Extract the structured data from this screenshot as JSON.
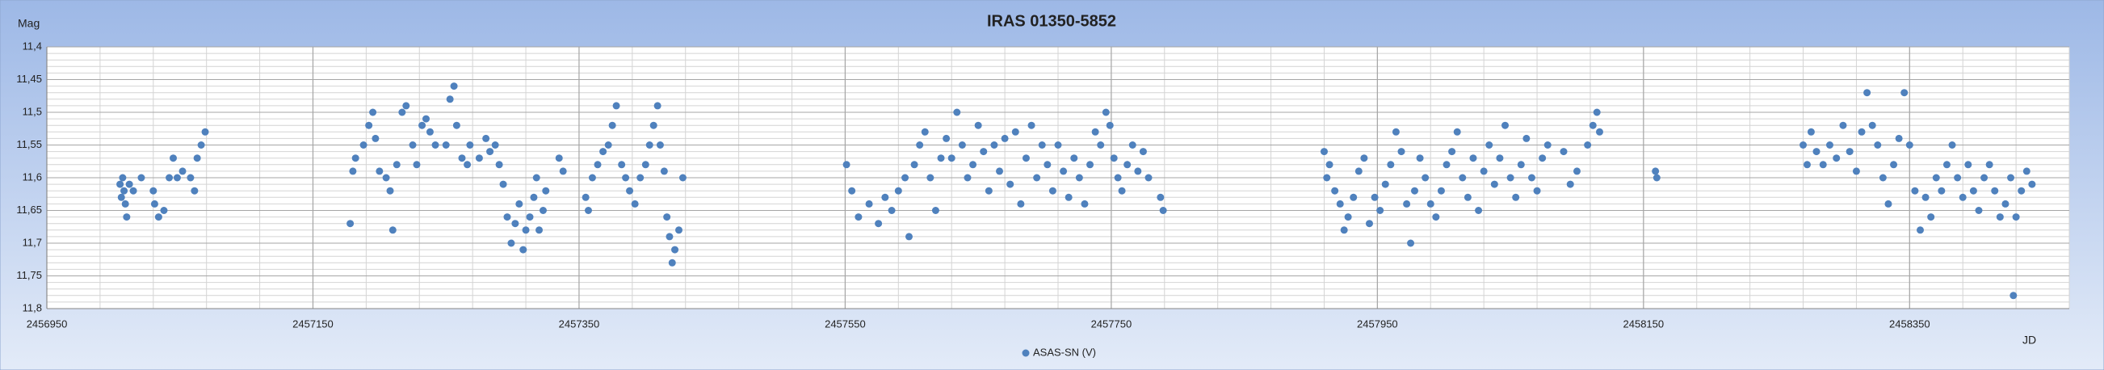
{
  "chart_data": {
    "type": "scatter",
    "title": "IRAS 01350-5852",
    "ylabel": "Mag",
    "xlabel": "JD",
    "xlim": [
      2456950,
      2458470
    ],
    "xticks": [
      2456950,
      2457150,
      2457350,
      2457550,
      2457750,
      2457950,
      2458150,
      2458350
    ],
    "ylim": [
      11.4,
      11.8
    ],
    "y_inverted": true,
    "yticks": [
      {
        "value": 11.4,
        "label": "11,4"
      },
      {
        "value": 11.45,
        "label": "11,45"
      },
      {
        "value": 11.5,
        "label": "11,5"
      },
      {
        "value": 11.55,
        "label": "11,55"
      },
      {
        "value": 11.6,
        "label": "11,6"
      },
      {
        "value": 11.65,
        "label": "11,65"
      },
      {
        "value": 11.7,
        "label": "11,7"
      },
      {
        "value": 11.75,
        "label": "11,75"
      },
      {
        "value": 11.8,
        "label": "11,8"
      }
    ],
    "grid": true,
    "x_minor_step": 40,
    "y_minor_step": 0.01,
    "legend": "bottom",
    "series": [
      {
        "name": "ASAS-SN (V)",
        "color": "#4f81bd",
        "x": [
          2457005,
          2457006,
          2457007,
          2457008,
          2457009,
          2457010,
          2457012,
          2457015,
          2457021,
          2457030,
          2457031,
          2457034,
          2457038,
          2457042,
          2457045,
          2457048,
          2457052,
          2457058,
          2457061,
          2457063,
          2457066,
          2457069,
          2457178,
          2457180,
          2457182,
          2457188,
          2457192,
          2457195,
          2457197,
          2457200,
          2457205,
          2457208,
          2457210,
          2457213,
          2457217,
          2457220,
          2457225,
          2457228,
          2457232,
          2457235,
          2457238,
          2457242,
          2457250,
          2457253,
          2457256,
          2457258,
          2457262,
          2457266,
          2457268,
          2457275,
          2457280,
          2457283,
          2457287,
          2457290,
          2457293,
          2457296,
          2457299,
          2457302,
          2457305,
          2457308,
          2457310,
          2457313,
          2457316,
          2457318,
          2457320,
          2457323,
          2457325,
          2457335,
          2457338,
          2457355,
          2457357,
          2457360,
          2457364,
          2457368,
          2457372,
          2457375,
          2457378,
          2457382,
          2457385,
          2457388,
          2457392,
          2457396,
          2457400,
          2457403,
          2457406,
          2457409,
          2457411,
          2457414,
          2457416,
          2457418,
          2457420,
          2457422,
          2457425,
          2457428,
          2457551,
          2457555,
          2457560,
          2457568,
          2457575,
          2457580,
          2457585,
          2457590,
          2457595,
          2457598,
          2457602,
          2457606,
          2457610,
          2457614,
          2457618,
          2457622,
          2457626,
          2457630,
          2457634,
          2457638,
          2457642,
          2457646,
          2457650,
          2457654,
          2457658,
          2457662,
          2457666,
          2457670,
          2457674,
          2457678,
          2457682,
          2457686,
          2457690,
          2457694,
          2457698,
          2457702,
          2457706,
          2457710,
          2457714,
          2457718,
          2457722,
          2457726,
          2457730,
          2457734,
          2457738,
          2457742,
          2457746,
          2457749,
          2457752,
          2457755,
          2457758,
          2457762,
          2457766,
          2457770,
          2457774,
          2457778,
          2457787,
          2457789,
          2457910,
          2457912,
          2457914,
          2457918,
          2457922,
          2457925,
          2457928,
          2457932,
          2457936,
          2457940,
          2457944,
          2457948,
          2457952,
          2457956,
          2457960,
          2457964,
          2457968,
          2457972,
          2457975,
          2457978,
          2457982,
          2457986,
          2457990,
          2457994,
          2457998,
          2458002,
          2458006,
          2458010,
          2458014,
          2458018,
          2458022,
          2458026,
          2458030,
          2458034,
          2458038,
          2458042,
          2458046,
          2458050,
          2458054,
          2458058,
          2458062,
          2458066,
          2458070,
          2458074,
          2458078,
          2458090,
          2458095,
          2458100,
          2458108,
          2458112,
          2458115,
          2458117,
          2458159,
          2458160,
          2458270,
          2458273,
          2458276,
          2458280,
          2458285,
          2458290,
          2458295,
          2458300,
          2458305,
          2458310,
          2458314,
          2458318,
          2458322,
          2458326,
          2458330,
          2458334,
          2458338,
          2458342,
          2458346,
          2458350,
          2458354,
          2458358,
          2458362,
          2458366,
          2458370,
          2458374,
          2458378,
          2458382,
          2458386,
          2458390,
          2458394,
          2458398,
          2458402,
          2458406,
          2458410,
          2458414,
          2458418,
          2458422,
          2458426,
          2458430,
          2458434,
          2458438,
          2458442,
          2458428
        ],
        "values": [
          11.61,
          11.63,
          11.6,
          11.62,
          11.64,
          11.66,
          11.61,
          11.62,
          11.6,
          11.62,
          11.64,
          11.66,
          11.65,
          11.6,
          11.57,
          11.6,
          11.59,
          11.6,
          11.62,
          11.57,
          11.55,
          11.53,
          11.67,
          11.59,
          11.57,
          11.55,
          11.52,
          11.5,
          11.54,
          11.59,
          11.6,
          11.62,
          11.68,
          11.58,
          11.5,
          11.49,
          11.55,
          11.58,
          11.52,
          11.51,
          11.53,
          11.55,
          11.55,
          11.48,
          11.46,
          11.52,
          11.57,
          11.58,
          11.55,
          11.57,
          11.54,
          11.56,
          11.55,
          11.58,
          11.61,
          11.66,
          11.7,
          11.67,
          11.64,
          11.71,
          11.68,
          11.66,
          11.63,
          11.6,
          11.68,
          11.65,
          11.62,
          11.57,
          11.59,
          11.63,
          11.65,
          11.6,
          11.58,
          11.56,
          11.55,
          11.52,
          11.49,
          11.58,
          11.6,
          11.62,
          11.64,
          11.6,
          11.58,
          11.55,
          11.52,
          11.49,
          11.55,
          11.59,
          11.66,
          11.69,
          11.73,
          11.71,
          11.68,
          11.6,
          11.58,
          11.62,
          11.66,
          11.64,
          11.67,
          11.63,
          11.65,
          11.62,
          11.6,
          11.69,
          11.58,
          11.55,
          11.53,
          11.6,
          11.65,
          11.57,
          11.54,
          11.57,
          11.5,
          11.55,
          11.6,
          11.58,
          11.52,
          11.56,
          11.62,
          11.55,
          11.59,
          11.54,
          11.61,
          11.53,
          11.64,
          11.57,
          11.52,
          11.6,
          11.55,
          11.58,
          11.62,
          11.55,
          11.59,
          11.63,
          11.57,
          11.6,
          11.64,
          11.58,
          11.53,
          11.55,
          11.5,
          11.52,
          11.57,
          11.6,
          11.62,
          11.58,
          11.55,
          11.59,
          11.56,
          11.6,
          11.63,
          11.65,
          11.56,
          11.6,
          11.58,
          11.62,
          11.64,
          11.68,
          11.66,
          11.63,
          11.59,
          11.57,
          11.67,
          11.63,
          11.65,
          11.61,
          11.58,
          11.53,
          11.56,
          11.64,
          11.7,
          11.62,
          11.57,
          11.6,
          11.64,
          11.66,
          11.62,
          11.58,
          11.56,
          11.53,
          11.6,
          11.63,
          11.57,
          11.65,
          11.59,
          11.55,
          11.61,
          11.57,
          11.52,
          11.6,
          11.63,
          11.58,
          11.54,
          11.6,
          11.62,
          11.57,
          11.55,
          11.56,
          11.61,
          11.59,
          11.55,
          11.52,
          11.5,
          11.53,
          11.59,
          11.6,
          11.55,
          11.58,
          11.53,
          11.56,
          11.58,
          11.55,
          11.57,
          11.52,
          11.56,
          11.59,
          11.53,
          11.47,
          11.52,
          11.55,
          11.6,
          11.64,
          11.58,
          11.54,
          11.47,
          11.55,
          11.62,
          11.68,
          11.63,
          11.66,
          11.6,
          11.62,
          11.58,
          11.55,
          11.6,
          11.63,
          11.58,
          11.62,
          11.65,
          11.6,
          11.58,
          11.62,
          11.66,
          11.64,
          11.6,
          11.66,
          11.62,
          11.59,
          11.61,
          11.78
        ]
      }
    ]
  }
}
